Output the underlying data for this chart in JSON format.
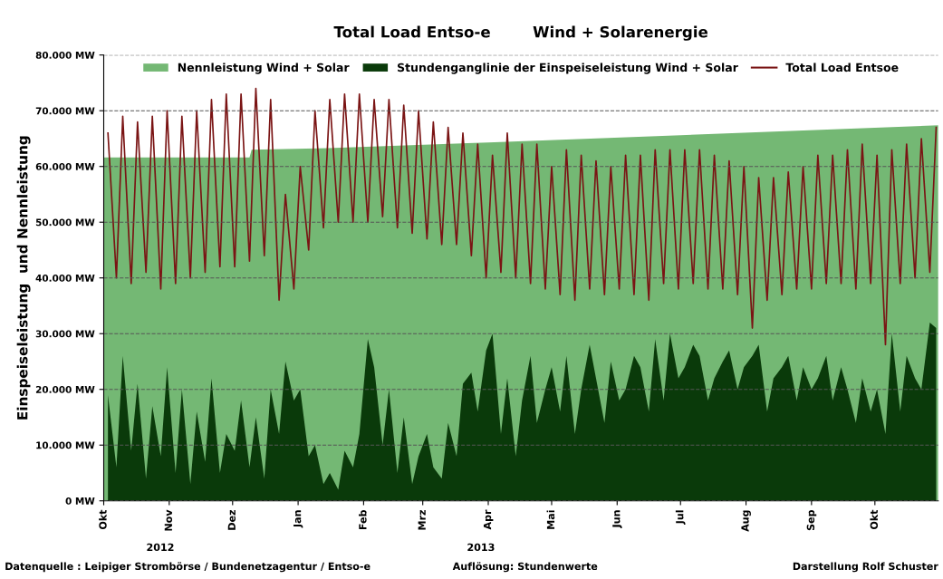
{
  "chart_data": {
    "type": "area",
    "title": "Total Load Entso-e        Wind + Solarenergie",
    "ylabel": "Einspeiseleistung  und Nennleistung",
    "annotations": [
      "2012",
      "2013",
      "Datenquelle : Leipiger Strombörse / Bundenetzagentur / Entso-e",
      "Auflösung: Stundenwerte",
      "Darstellung Rolf Schuster"
    ],
    "x": [
      "2012-10-03",
      "2012-10-07",
      "2012-10-10",
      "2012-10-14",
      "2012-10-17",
      "2012-10-21",
      "2012-10-24",
      "2012-10-28",
      "2012-10-31",
      "2012-11-04",
      "2012-11-07",
      "2012-11-11",
      "2012-11-14",
      "2012-11-18",
      "2012-11-21",
      "2012-11-25",
      "2012-11-28",
      "2012-12-02",
      "2012-12-05",
      "2012-12-09",
      "2012-12-12",
      "2012-12-16",
      "2012-12-19",
      "2012-12-23",
      "2012-12-26",
      "2012-12-30",
      "2013-01-02",
      "2013-01-06",
      "2013-01-09",
      "2013-01-13",
      "2013-01-16",
      "2013-01-20",
      "2013-01-23",
      "2013-01-27",
      "2013-01-30",
      "2013-02-03",
      "2013-02-06",
      "2013-02-10",
      "2013-02-13",
      "2013-02-17",
      "2013-02-20",
      "2013-02-24",
      "2013-02-27",
      "2013-03-03",
      "2013-03-06",
      "2013-03-10",
      "2013-03-13",
      "2013-03-17",
      "2013-03-20",
      "2013-03-24",
      "2013-03-27",
      "2013-03-31",
      "2013-04-03",
      "2013-04-07",
      "2013-04-10",
      "2013-04-14",
      "2013-04-17",
      "2013-04-21",
      "2013-04-24",
      "2013-04-28",
      "2013-05-01",
      "2013-05-05",
      "2013-05-08",
      "2013-05-12",
      "2013-05-15",
      "2013-05-19",
      "2013-05-22",
      "2013-05-26",
      "2013-05-29",
      "2013-06-02",
      "2013-06-05",
      "2013-06-09",
      "2013-06-12",
      "2013-06-16",
      "2013-06-19",
      "2013-06-23",
      "2013-06-26",
      "2013-06-30",
      "2013-07-03",
      "2013-07-07",
      "2013-07-10",
      "2013-07-14",
      "2013-07-17",
      "2013-07-21",
      "2013-07-24",
      "2013-07-28",
      "2013-07-31",
      "2013-08-04",
      "2013-08-07",
      "2013-08-11",
      "2013-08-14",
      "2013-08-18",
      "2013-08-21",
      "2013-08-25",
      "2013-08-28",
      "2013-09-01",
      "2013-09-04",
      "2013-09-08",
      "2013-09-11",
      "2013-09-15",
      "2013-09-18",
      "2013-09-22",
      "2013-09-25",
      "2013-09-29",
      "2013-10-02",
      "2013-10-06",
      "2013-10-09",
      "2013-10-13",
      "2013-10-16",
      "2013-10-20",
      "2013-10-23",
      "2013-10-27",
      "2013-10-30"
    ],
    "series": [
      {
        "name": "Nennleistung Wind + Solar",
        "color": "#74b874",
        "x": [
          "2012-10-01",
          "2012-12-09",
          "2012-12-10",
          "2013-01-15",
          "2013-04-01",
          "2013-07-01",
          "2013-10-31"
        ],
        "values": [
          61600,
          61600,
          63000,
          63300,
          64300,
          65600,
          67400
        ]
      },
      {
        "name": "Stundenganglinie der Einspeiseleistung Wind + Solar",
        "color": "#0a3a0a",
        "values": [
          19000,
          6000,
          26000,
          9000,
          21000,
          4000,
          17000,
          8000,
          24000,
          5000,
          20000,
          3000,
          16000,
          7000,
          22000,
          5000,
          12000,
          9000,
          18000,
          6000,
          15000,
          4000,
          20000,
          12000,
          25000,
          18000,
          20000,
          8000,
          10000,
          3000,
          5000,
          2000,
          9000,
          6000,
          12000,
          29000,
          24000,
          10000,
          20000,
          5000,
          15000,
          3000,
          8000,
          12000,
          6000,
          4000,
          14000,
          8000,
          21000,
          23000,
          16000,
          27000,
          30000,
          12000,
          22000,
          8000,
          18000,
          26000,
          14000,
          20000,
          24000,
          16000,
          26000,
          12000,
          20000,
          28000,
          22000,
          14000,
          25000,
          18000,
          20000,
          26000,
          24000,
          16000,
          29000,
          18000,
          30000,
          22000,
          24000,
          28000,
          26000,
          18000,
          22000,
          25000,
          27000,
          20000,
          24000,
          26000,
          28000,
          16000,
          22000,
          24000,
          26000,
          18000,
          24000,
          20000,
          22000,
          26000,
          18000,
          24000,
          20000,
          14000,
          22000,
          16000,
          20000,
          12000,
          30000,
          16000,
          26000,
          22000,
          20000,
          32000,
          31000
        ]
      },
      {
        "name": "Total Load Entsoe",
        "type": "line",
        "color": "#7a1414",
        "values": [
          66000,
          40000,
          69000,
          39000,
          68000,
          41000,
          69000,
          38000,
          70000,
          39000,
          69000,
          40000,
          70000,
          41000,
          72000,
          42000,
          73000,
          42000,
          73000,
          43000,
          74000,
          44000,
          72000,
          36000,
          55000,
          38000,
          60000,
          45000,
          70000,
          49000,
          72000,
          50000,
          73000,
          50000,
          73000,
          50000,
          72000,
          51000,
          72000,
          49000,
          71000,
          48000,
          70000,
          47000,
          68000,
          46000,
          67000,
          46000,
          66000,
          44000,
          64000,
          40000,
          62000,
          41000,
          66000,
          40000,
          64000,
          39000,
          64000,
          38000,
          60000,
          37000,
          63000,
          36000,
          62000,
          38000,
          61000,
          37000,
          60000,
          38000,
          62000,
          37000,
          62000,
          36000,
          63000,
          39000,
          63000,
          38000,
          63000,
          39000,
          63000,
          38000,
          62000,
          38000,
          61000,
          37000,
          60000,
          31000,
          58000,
          36000,
          58000,
          37000,
          59000,
          38000,
          60000,
          38000,
          62000,
          39000,
          62000,
          39000,
          63000,
          38000,
          64000,
          39000,
          62000,
          28000,
          63000,
          39000,
          64000,
          40000,
          65000,
          41000,
          67000
        ]
      }
    ],
    "xlim": [
      "2012-10-01",
      "2013-10-31"
    ],
    "xticks": [
      {
        "value": "2012-10-01",
        "label": "Okt"
      },
      {
        "value": "2012-11-01",
        "label": "Nov"
      },
      {
        "value": "2012-12-01",
        "label": "Dez"
      },
      {
        "value": "2013-01-01",
        "label": "Jan"
      },
      {
        "value": "2013-02-01",
        "label": "Feb"
      },
      {
        "value": "2013-03-01",
        "label": "Mrz"
      },
      {
        "value": "2013-04-01",
        "label": "Apr"
      },
      {
        "value": "2013-05-01",
        "label": "Mai"
      },
      {
        "value": "2013-06-01",
        "label": "Jun"
      },
      {
        "value": "2013-07-01",
        "label": "Jul"
      },
      {
        "value": "2013-08-01",
        "label": "Aug"
      },
      {
        "value": "2013-09-01",
        "label": "Sep"
      },
      {
        "value": "2013-10-01",
        "label": "Okt"
      }
    ],
    "ylim": [
      0,
      80000
    ],
    "yticks": [
      {
        "value": 0,
        "label": "0 MW"
      },
      {
        "value": 10000,
        "label": "10.000 MW"
      },
      {
        "value": 20000,
        "label": "20.000 MW"
      },
      {
        "value": 30000,
        "label": "30.000 MW"
      },
      {
        "value": 40000,
        "label": "40.000 MW"
      },
      {
        "value": 50000,
        "label": "50.000 MW"
      },
      {
        "value": 60000,
        "label": "60.000 MW"
      },
      {
        "value": 70000,
        "label": "70.000 MW"
      },
      {
        "value": 80000,
        "label": "80.000 MW"
      }
    ],
    "grid": "y",
    "legend": "top"
  }
}
